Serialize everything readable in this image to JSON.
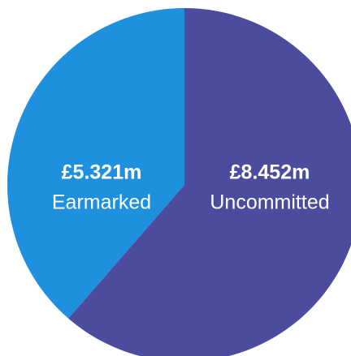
{
  "chart_data": {
    "type": "pie",
    "categories": [
      "Earmarked",
      "Uncommitted"
    ],
    "values": [
      5.321,
      8.452
    ],
    "value_labels": [
      "£5.321m",
      "£8.452m"
    ],
    "colors": [
      "#1f90dd",
      "#4b4c9e"
    ]
  }
}
